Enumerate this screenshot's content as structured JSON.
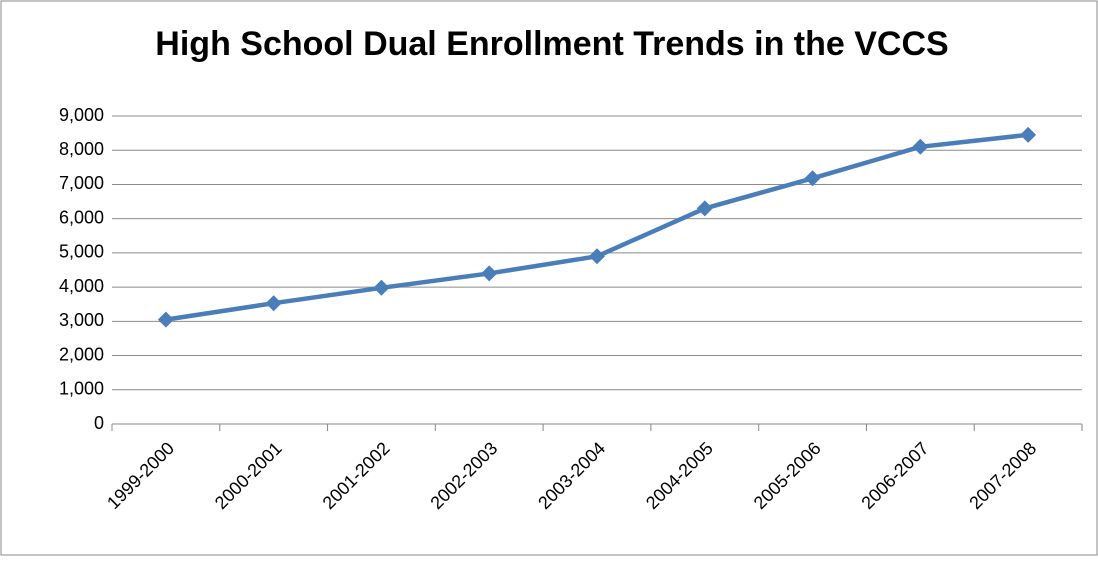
{
  "chart_data": {
    "type": "line",
    "title": "High School Dual Enrollment Trends in the VCCS",
    "categories": [
      "1999-2000",
      "2000-2001",
      "2001-2002",
      "2002-2003",
      "2003-2004",
      "2004-2005",
      "2005-2006",
      "2006-2007",
      "2007-2008"
    ],
    "series": [
      {
        "name": "Enrollment",
        "color": "#4a7ebb",
        "values": [
          3050,
          3530,
          3980,
          4400,
          4900,
          6300,
          7180,
          8100,
          8450
        ]
      }
    ],
    "ylim": [
      0,
      9000
    ],
    "yticks": [
      0,
      {
        "value": 1000,
        "label": "1,000"
      },
      {
        "value": 2000,
        "label": "2,000"
      },
      {
        "value": 3000,
        "label": "3,000"
      },
      {
        "value": 4000,
        "label": "4,000"
      },
      {
        "value": 5000,
        "label": "5,000"
      },
      {
        "value": 6000,
        "label": "6,000"
      },
      {
        "value": 7000,
        "label": "7,000"
      },
      {
        "value": 8000,
        "label": "8,000"
      },
      {
        "value": 9000,
        "label": "9,000"
      }
    ],
    "grid": true,
    "legend": false
  }
}
